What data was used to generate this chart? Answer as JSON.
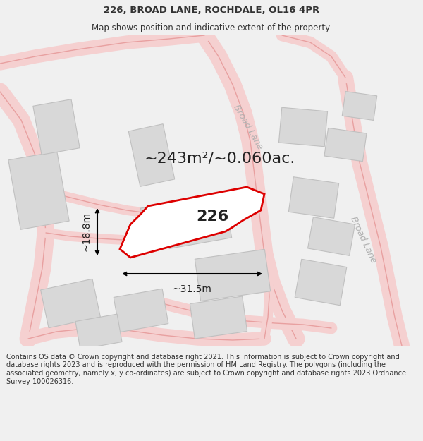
{
  "title_line1": "226, BROAD LANE, ROCHDALE, OL16 4PR",
  "title_line2": "Map shows position and indicative extent of the property.",
  "footer_text": "Contains OS data © Crown copyright and database right 2021. This information is subject to Crown copyright and database rights 2023 and is reproduced with the permission of HM Land Registry. The polygons (including the associated geometry, namely x, y co-ordinates) are subject to Crown copyright and database rights 2023 Ordnance Survey 100026316.",
  "area_label": "~243m²/~0.060ac.",
  "number_label": "226",
  "dim_width": "~31.5m",
  "dim_height": "~18.8m",
  "road_label1": "Broad Lane",
  "road_label2": "Broad Lane",
  "bg_color": "#f0f0f0",
  "map_bg": "#ffffff",
  "road_fill_color": "#f5d0d0",
  "road_edge_color": "#e8a0a0",
  "building_fill": "#d8d8d8",
  "building_stroke": "#c0c0c0",
  "highlight_fill": "#ffffff",
  "highlight_stroke": "#dd0000",
  "title_fontsize": 9.5,
  "subtitle_fontsize": 8.5,
  "footer_fontsize": 7.0,
  "area_fontsize": 16,
  "number_fontsize": 16,
  "dim_fontsize": 10,
  "road_fontsize": 9
}
